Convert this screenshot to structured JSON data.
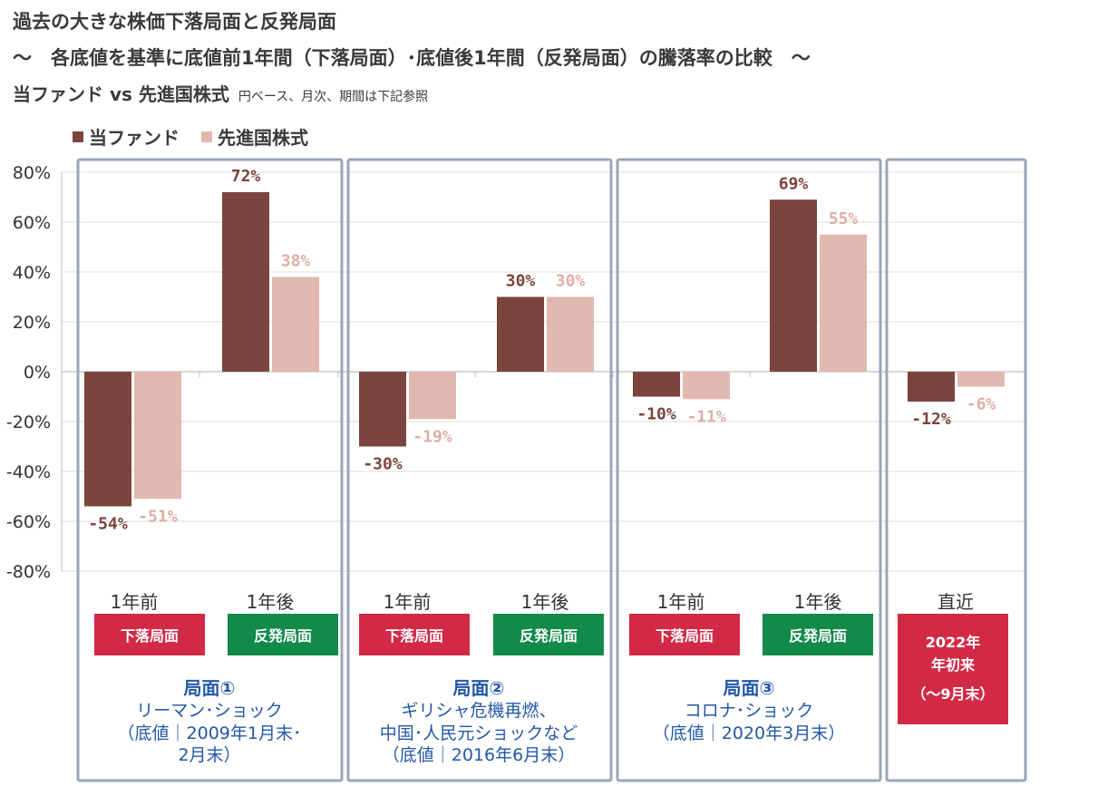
{
  "title": "過去の大きな株価下落局面と反発局面",
  "subtitle": "～　各底値を基準に底値前1年間（下落局面）･底値後1年間（反発局面）の騰落率の比較　～",
  "subtitle2": "当ファンド vs 先進国株式",
  "subtitle2_note": "円ベース、月次、期間は下記参照",
  "colors": {
    "fund": "#7b443c",
    "index": "#e0b8b0",
    "down_tag": "#d22a46",
    "up_tag": "#128a4a",
    "recent_tag": "#d22a46",
    "frame": "#9aa6b8",
    "phase_text": "#2458a6"
  },
  "labels": {
    "before": "1年前",
    "after": "1年後",
    "recent": "直近",
    "down_tag": "下落局面",
    "up_tag": "反発局面",
    "recent_tag_line1": "2022年",
    "recent_tag_line2": "年初来",
    "recent_tag_line3": "（～9月末）"
  },
  "phases": [
    {
      "title": "局面①",
      "line1": "リーマン･ショック",
      "line2": "（底値｜2009年1月末･",
      "line3": "2月末）"
    },
    {
      "title": "局面②",
      "line1": "ギリシャ危機再燃、",
      "line2": "中国･人民元ショックなど",
      "line3": "（底値｜2016年6月末）"
    },
    {
      "title": "局面③",
      "line1": "コロナ･ショック",
      "line2": "（底値｜2020年3月末）",
      "line3": ""
    }
  ],
  "chart_data": {
    "type": "bar",
    "categories": [
      "1年前",
      "1年後",
      "1年前",
      "1年後",
      "1年前",
      "1年後",
      "直近"
    ],
    "series": [
      {
        "name": "当ファンド",
        "values": [
          -54,
          72,
          -30,
          30,
          -10,
          69,
          -12
        ],
        "labels": [
          "-54%",
          "72%",
          "-30%",
          "30%",
          "-10%",
          "69%",
          "-12%"
        ]
      },
      {
        "name": "先進国株式",
        "values": [
          -51,
          38,
          -19,
          30,
          -11,
          55,
          -6
        ],
        "labels": [
          "-51%",
          "38%",
          "-19%",
          "30%",
          "-11%",
          "55%",
          "-6%"
        ]
      }
    ],
    "ylim": [
      -80,
      80
    ],
    "yticks": [
      80,
      60,
      40,
      20,
      0,
      -20,
      -40,
      -60,
      -80
    ],
    "ytick_labels": [
      "80%",
      "60%",
      "40%",
      "20%",
      "0%",
      "-20%",
      "-40%",
      "-60%",
      "-80%"
    ],
    "grid": true,
    "legend": "top-left"
  }
}
